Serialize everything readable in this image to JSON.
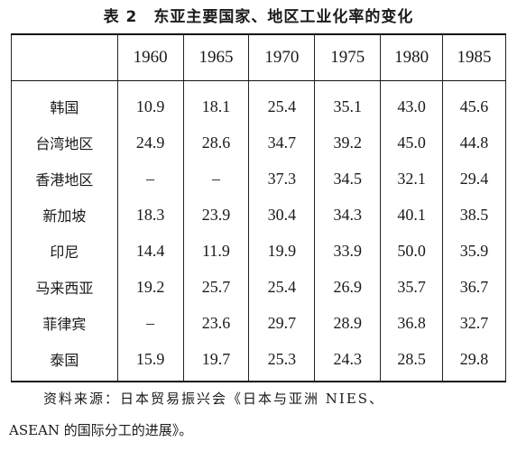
{
  "title": "表 2　东亚主要国家、地区工业化率的变化",
  "table": {
    "corner": "",
    "years": [
      "1960",
      "1965",
      "1970",
      "1975",
      "1980",
      "1985"
    ],
    "rows": [
      {
        "name": "韩国",
        "values": [
          "10.9",
          "18.1",
          "25.4",
          "35.1",
          "43.0",
          "45.6"
        ]
      },
      {
        "name": "台湾地区",
        "values": [
          "24.9",
          "28.6",
          "34.7",
          "39.2",
          "45.0",
          "44.8"
        ]
      },
      {
        "name": "香港地区",
        "values": [
          "–",
          "–",
          "37.3",
          "34.5",
          "32.1",
          "29.4"
        ]
      },
      {
        "name": "新加坡",
        "values": [
          "18.3",
          "23.9",
          "30.4",
          "34.3",
          "40.1",
          "38.5"
        ]
      },
      {
        "name": "印尼",
        "values": [
          "14.4",
          "11.9",
          "19.9",
          "33.9",
          "50.0",
          "35.9"
        ]
      },
      {
        "name": "马来西亚",
        "values": [
          "19.2",
          "25.7",
          "25.4",
          "26.9",
          "35.7",
          "36.7"
        ]
      },
      {
        "name": "菲律宾",
        "values": [
          "–",
          "23.6",
          "29.7",
          "28.9",
          "36.8",
          "32.7"
        ]
      },
      {
        "name": "泰国",
        "values": [
          "15.9",
          "19.7",
          "25.3",
          "24.3",
          "28.5",
          "29.8"
        ]
      }
    ]
  },
  "source": {
    "line1": "资料来源：日本贸易振兴会《日本与亚洲 NIES、",
    "line2": "ASEAN 的国际分工的进展》。"
  }
}
